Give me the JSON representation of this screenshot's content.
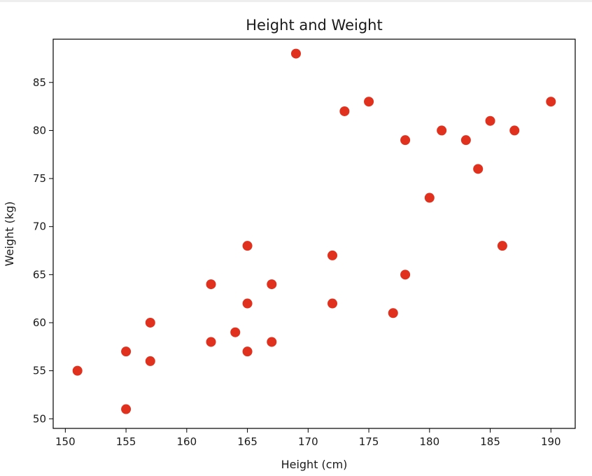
{
  "chart_data": {
    "type": "scatter",
    "title": "Height and Weight",
    "xlabel": "Height (cm)",
    "ylabel": "Weight (kg)",
    "xlim": [
      149,
      192
    ],
    "ylim": [
      49,
      89.5
    ],
    "x_ticks": [
      150,
      155,
      160,
      165,
      170,
      175,
      180,
      185,
      190
    ],
    "y_ticks": [
      50,
      55,
      60,
      65,
      70,
      75,
      80,
      85
    ],
    "grid": false,
    "marker_color": "#e0301e",
    "points": [
      {
        "x": 151,
        "y": 55
      },
      {
        "x": 155,
        "y": 57
      },
      {
        "x": 155,
        "y": 51
      },
      {
        "x": 157,
        "y": 60
      },
      {
        "x": 157,
        "y": 56
      },
      {
        "x": 162,
        "y": 64
      },
      {
        "x": 162,
        "y": 58
      },
      {
        "x": 164,
        "y": 59
      },
      {
        "x": 165,
        "y": 68
      },
      {
        "x": 165,
        "y": 62
      },
      {
        "x": 165,
        "y": 57
      },
      {
        "x": 167,
        "y": 64
      },
      {
        "x": 167,
        "y": 58
      },
      {
        "x": 169,
        "y": 88
      },
      {
        "x": 172,
        "y": 67
      },
      {
        "x": 172,
        "y": 62
      },
      {
        "x": 173,
        "y": 82
      },
      {
        "x": 175,
        "y": 83
      },
      {
        "x": 177,
        "y": 61
      },
      {
        "x": 178,
        "y": 79
      },
      {
        "x": 178,
        "y": 65
      },
      {
        "x": 180,
        "y": 73
      },
      {
        "x": 181,
        "y": 80
      },
      {
        "x": 183,
        "y": 79
      },
      {
        "x": 184,
        "y": 76
      },
      {
        "x": 185,
        "y": 81
      },
      {
        "x": 186,
        "y": 68
      },
      {
        "x": 187,
        "y": 80
      },
      {
        "x": 190,
        "y": 83
      }
    ]
  }
}
